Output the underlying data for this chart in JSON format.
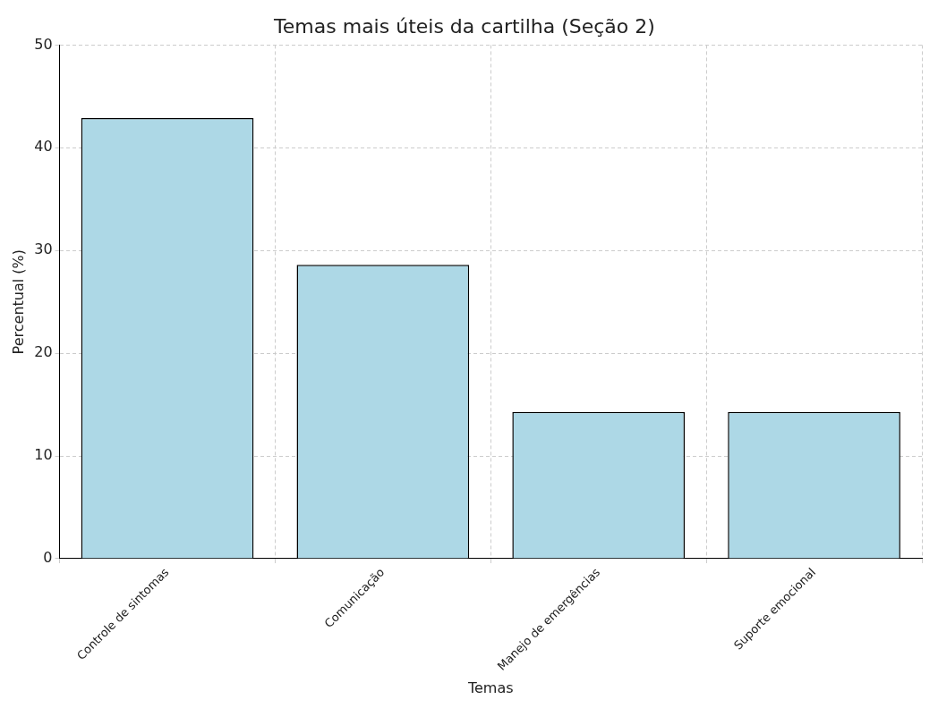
{
  "chart_data": {
    "type": "bar",
    "title": "Temas mais úteis da cartilha (Seção 2)",
    "xlabel": "Temas",
    "ylabel": "Percentual (%)",
    "categories": [
      "Controle de sintomas",
      "Comunicação",
      "Manejo de emergências",
      "Suporte emocional"
    ],
    "values": [
      42.9,
      28.6,
      14.3,
      14.3
    ],
    "color": "#add8e6",
    "ylim": [
      0,
      50
    ],
    "yticks": [
      0,
      10,
      20,
      30,
      40,
      50
    ],
    "grid": true
  }
}
